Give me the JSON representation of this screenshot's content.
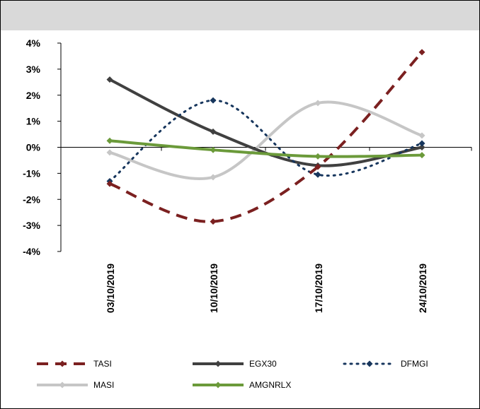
{
  "title": "",
  "chart_data": {
    "type": "line",
    "title": "",
    "xlabel": "",
    "ylabel": "",
    "categories": [
      "03/10/2019",
      "10/10/2019",
      "17/10/2019",
      "24/10/2019"
    ],
    "y_tick_labels": [
      "4%",
      "3%",
      "2%",
      "1%",
      "0%",
      "-1%",
      "-2%",
      "-3%",
      "-4%"
    ],
    "ylim": [
      -4,
      4
    ],
    "grid": false,
    "legend_position": "bottom",
    "series": [
      {
        "name": "TASI",
        "values": [
          -1.4,
          -2.85,
          -0.75,
          3.65
        ],
        "color": "#7b2020",
        "style": "dashed",
        "marker": "diamond"
      },
      {
        "name": "EGX30",
        "values": [
          2.6,
          0.6,
          -0.7,
          0.0
        ],
        "color": "#404040",
        "style": "solid",
        "marker": "diamond"
      },
      {
        "name": "DFMGI",
        "values": [
          -1.3,
          1.8,
          -1.05,
          0.15
        ],
        "color": "#17365d",
        "style": "dotted",
        "marker": "diamond"
      },
      {
        "name": "MASI",
        "values": [
          -0.2,
          -1.15,
          1.7,
          0.45
        ],
        "color": "#c6c6c6",
        "style": "solid",
        "marker": "diamond"
      },
      {
        "name": "AMGNRLX",
        "values": [
          0.25,
          -0.1,
          -0.35,
          -0.3
        ],
        "color": "#6b9a3a",
        "style": "solid",
        "marker": "diamond"
      }
    ]
  }
}
